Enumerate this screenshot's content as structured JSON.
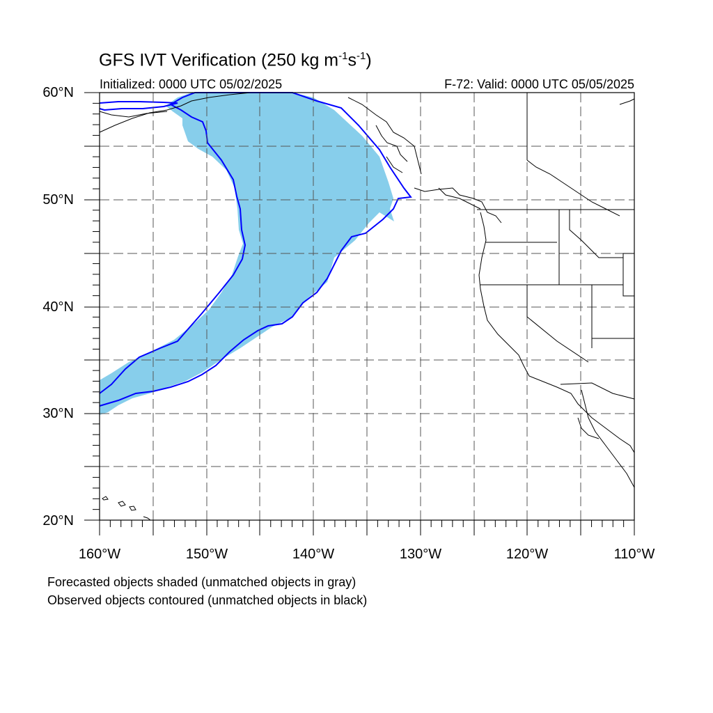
{
  "title": {
    "main": "GFS IVT Verification (250 kg m",
    "exp1": "-1",
    "mid": "s",
    "exp2": "-1",
    "end": ")"
  },
  "initialized": "Initialized: 0000 UTC 05/02/2025",
  "valid": "F-72: Valid: 0000 UTC 05/05/2025",
  "lat_labels": [
    "60°N",
    "50°N",
    "40°N",
    "30°N",
    "20°N"
  ],
  "lon_labels": [
    "160°W",
    "150°W",
    "140°W",
    "130°W",
    "120°W",
    "110°W"
  ],
  "notes": {
    "forecast": "Forecasted objects shaded (unmatched objects in gray)",
    "observed": "Observed objects contoured (unmatched objects in black)"
  },
  "map": {
    "lon_range": [
      -160,
      -110
    ],
    "lat_range": [
      20,
      60
    ],
    "grid_spacing_deg": 5,
    "grid": true,
    "colors": {
      "forecast_shade": "#87ceeb",
      "observed_contour": "#0000ff",
      "coastline": "#000000",
      "grid": "#555555"
    }
  }
}
